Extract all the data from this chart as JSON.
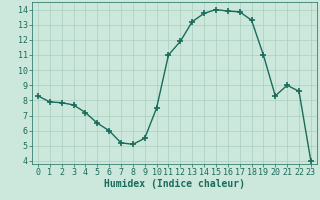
{
  "x_values": [
    0,
    1,
    2,
    3,
    4,
    5,
    6,
    7,
    8,
    9,
    10,
    11,
    12,
    13,
    14,
    15,
    16,
    17,
    18,
    19,
    20,
    21,
    22,
    23
  ],
  "y_values": [
    8.3,
    7.9,
    7.85,
    7.7,
    7.2,
    6.5,
    6.0,
    5.2,
    5.1,
    5.5,
    7.5,
    11.0,
    11.9,
    13.2,
    13.75,
    14.0,
    13.9,
    13.85,
    13.3,
    11.0,
    8.3,
    9.0,
    8.6,
    4.0
  ],
  "line_color": "#1a6b5a",
  "marker": "+",
  "marker_size": 4,
  "marker_lw": 1.2,
  "bg_color": "#cce8dc",
  "grid_color": "#aacfbe",
  "xlabel": "Humidex (Indice chaleur)",
  "xlabel_fontsize": 7,
  "xlim": [
    -0.5,
    23.5
  ],
  "ylim": [
    3.8,
    14.5
  ],
  "yticks": [
    4,
    5,
    6,
    7,
    8,
    9,
    10,
    11,
    12,
    13,
    14
  ],
  "xticks": [
    0,
    1,
    2,
    3,
    4,
    5,
    6,
    7,
    8,
    9,
    10,
    11,
    12,
    13,
    14,
    15,
    16,
    17,
    18,
    19,
    20,
    21,
    22,
    23
  ],
  "tick_fontsize": 6,
  "line_width": 1.0
}
